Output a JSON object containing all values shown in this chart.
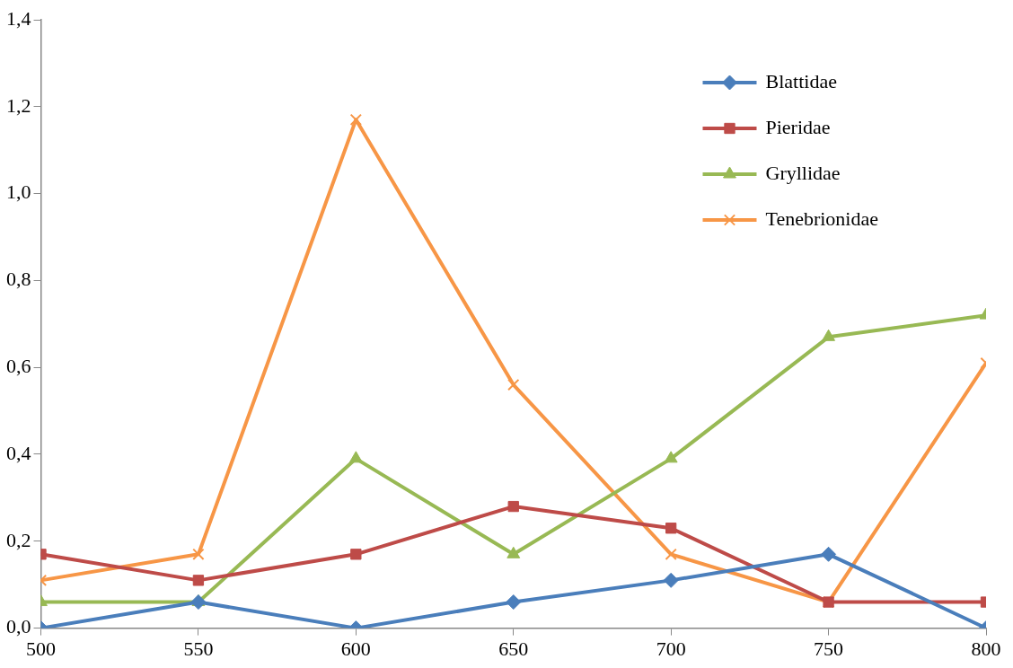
{
  "chart_data": {
    "type": "line",
    "x": [
      500,
      550,
      600,
      650,
      700,
      750,
      800
    ],
    "xlim": [
      500,
      800
    ],
    "xticks": [
      500,
      550,
      600,
      650,
      700,
      750,
      800
    ],
    "ylim": [
      0,
      1.4
    ],
    "yticks": [
      {
        "value": 0,
        "label": "0,0"
      },
      {
        "value": 0.2,
        "label": "0,2"
      },
      {
        "value": 0.4,
        "label": "0,4"
      },
      {
        "value": 0.6,
        "label": "0,6"
      },
      {
        "value": 0.8,
        "label": "0,8"
      },
      {
        "value": 1.0,
        "label": "1,0"
      },
      {
        "value": 1.2,
        "label": "1,2"
      },
      {
        "value": 1.4,
        "label": "1,4"
      }
    ],
    "grid": false,
    "legend": "top right",
    "line_style": "solid",
    "series": [
      {
        "name": "Blattidae",
        "color": "#4a7ebb",
        "marker": "diamond",
        "values": [
          0,
          0.06,
          0,
          0.06,
          0.11,
          0.17,
          0
        ]
      },
      {
        "name": "Pieridae",
        "color": "#be4b48",
        "marker": "square",
        "values": [
          0.17,
          0.11,
          0.17,
          0.28,
          0.23,
          0.06,
          0.06
        ]
      },
      {
        "name": "Gryllidae",
        "color": "#98b954",
        "marker": "triangle",
        "values": [
          0.06,
          0.06,
          0.39,
          0.17,
          0.39,
          0.67,
          0.72
        ]
      },
      {
        "name": "Tenebrionidae",
        "color": "#f79646",
        "marker": "cross",
        "values": [
          0.11,
          0.17,
          1.17,
          0.56,
          0.17,
          0.06,
          0.61
        ]
      }
    ]
  }
}
